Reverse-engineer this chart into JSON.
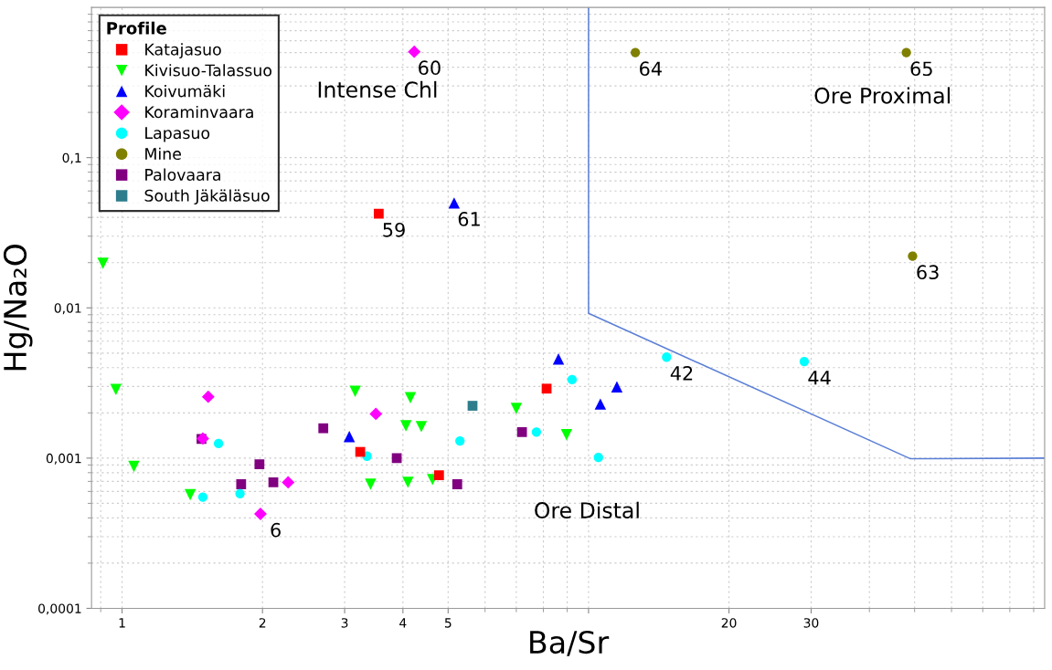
{
  "chart_data": {
    "type": "scatter",
    "xlabel": "Ba/Sr",
    "ylabel": "Hg/Na₂O",
    "legend_title": "Profile",
    "legend": "top left",
    "log": "xy",
    "grid": true,
    "xlim": [
      0.86,
      95
    ],
    "ylim": [
      0.0001,
      1
    ],
    "xticks": [
      1,
      2,
      3,
      4,
      5,
      {
        "value": 10,
        "label": null
      },
      20,
      30
    ],
    "yticks": [
      {
        "value": 0.0001,
        "label": "0,0001"
      },
      {
        "value": 0.001,
        "label": "0,001"
      },
      {
        "value": 0.01,
        "label": "0,01"
      },
      {
        "value": 0.1,
        "label": "0,1"
      }
    ],
    "series": [
      {
        "name": "Katajasuo",
        "color": "#ff0000",
        "marker": "square",
        "x": [
          3.55,
          3.24,
          4.78,
          8.13
        ],
        "values": [
          0.0423,
          0.0011,
          0.00077,
          0.0029
        ]
      },
      {
        "name": "Kivisuo-Talassuo",
        "color": "#00ff00",
        "marker": "triangle_down",
        "x": [
          0.91,
          0.97,
          1.06,
          1.4,
          3.16,
          4.15,
          4.06,
          4.38,
          3.41,
          4.1,
          4.63,
          7.0,
          8.97
        ],
        "values": [
          0.0198,
          0.00286,
          0.00088,
          0.00057,
          0.00278,
          0.00252,
          0.00164,
          0.00162,
          0.00067,
          0.00069,
          0.00072,
          0.00214,
          0.00143
        ]
      },
      {
        "name": "Koivumäki",
        "color": "#0000ff",
        "marker": "triangle",
        "x": [
          5.15,
          3.07,
          8.62,
          10.6,
          11.5
        ],
        "values": [
          0.0499,
          0.00139,
          0.00457,
          0.00229,
          0.00298
        ]
      },
      {
        "name": "Koraminvaara",
        "color": "#ff00ff",
        "marker": "diamond",
        "x": [
          4.23,
          1.53,
          3.5,
          1.49,
          2.27,
          1.98
        ],
        "values": [
          0.507,
          0.00256,
          0.00197,
          0.00135,
          0.00069,
          0.000425
        ]
      },
      {
        "name": "Lapasuo",
        "color": "#00ffff",
        "marker": "circle",
        "x": [
          1.61,
          1.49,
          1.79,
          3.35,
          5.3,
          7.73,
          9.22,
          10.5,
          14.7,
          29.0
        ],
        "values": [
          0.00125,
          0.00055,
          0.00058,
          0.00103,
          0.0013,
          0.00149,
          0.00333,
          0.00101,
          0.0047,
          0.00439
        ]
      },
      {
        "name": "Mine",
        "color": "#808000",
        "marker": "circle",
        "x": [
          12.6,
          48.0,
          49.5
        ],
        "values": [
          0.5,
          0.5,
          0.0221
        ]
      },
      {
        "name": "Palovaara",
        "color": "#800080",
        "marker": "square",
        "x": [
          1.48,
          2.7,
          1.97,
          1.8,
          2.11,
          3.88,
          5.23,
          7.2
        ],
        "values": [
          0.00134,
          0.00158,
          0.00091,
          0.00067,
          0.00069,
          0.001,
          0.00067,
          0.00149
        ]
      },
      {
        "name": "South Jäkäläsuo",
        "color": "#2e7d8c",
        "marker": "square",
        "x": [
          5.64
        ],
        "values": [
          0.00223
        ]
      },
      {
        "type": "line",
        "color": "#5b7fd6",
        "marker": "none",
        "x": [
          10,
          10,
          49,
          95
        ],
        "values": [
          1,
          0.0092,
          0.00099,
          0.001
        ]
      }
    ],
    "annotations": [
      "Intense Chl",
      "Ore Proximal",
      "Ore Distal",
      {
        "text": "60",
        "x": 4.23,
        "y": 0.507
      },
      {
        "text": "64",
        "x": 12.6,
        "y": 0.5
      },
      {
        "text": "65",
        "x": 48.0,
        "y": 0.5
      },
      {
        "text": "59",
        "x": 3.55,
        "y": 0.0423
      },
      {
        "text": "61",
        "x": 5.15,
        "y": 0.0499
      },
      {
        "text": "63",
        "x": 49.5,
        "y": 0.0221
      },
      {
        "text": "42",
        "x": 14.7,
        "y": 0.0047
      },
      {
        "text": "44",
        "x": 29.0,
        "y": 0.00439
      },
      {
        "text": "6",
        "x": 1.98,
        "y": 0.000425
      }
    ]
  }
}
